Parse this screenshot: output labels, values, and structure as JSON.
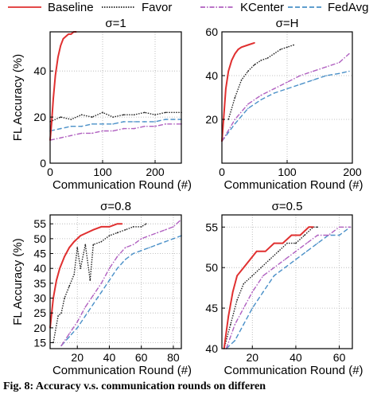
{
  "legend": [
    {
      "name": "Baseline",
      "color": "#e03030",
      "dash": "solid"
    },
    {
      "name": "Favor",
      "color": "#222222",
      "dash": "dotted"
    },
    {
      "name": "KCenter",
      "color": "#b060c0",
      "dash": "dashdot"
    },
    {
      "name": "FedAvg",
      "color": "#4a90c8",
      "dash": "dashed"
    }
  ],
  "caption": "Fig. 8: Accuracy v.s. communication rounds on differen",
  "chart_data": [
    {
      "type": "line",
      "title": "σ=1",
      "xlabel": "Communication Round (#)",
      "ylabel": "FL Accuracy (%)",
      "xlim": [
        0,
        250
      ],
      "ylim": [
        0,
        57
      ],
      "xticks": [
        "0",
        "100",
        "200"
      ],
      "yticks": [
        "0",
        "20",
        "40"
      ],
      "xtick_values": [
        0,
        100,
        200
      ],
      "ytick_values": [
        0,
        20,
        40
      ],
      "grid": true,
      "series": [
        {
          "name": "Baseline",
          "x": [
            0,
            3,
            6,
            10,
            15,
            20,
            25,
            30,
            35,
            40,
            45,
            50
          ],
          "y": [
            10,
            18,
            28,
            38,
            46,
            51,
            54,
            55,
            56,
            56,
            57,
            57
          ]
        },
        {
          "name": "Favor",
          "x": [
            0,
            20,
            40,
            60,
            80,
            100,
            120,
            140,
            160,
            180,
            200,
            220,
            250
          ],
          "y": [
            18,
            20,
            19,
            21,
            20,
            22,
            20,
            21,
            21,
            22,
            21,
            22,
            22
          ]
        },
        {
          "name": "KCenter",
          "x": [
            0,
            20,
            40,
            60,
            80,
            100,
            120,
            140,
            160,
            180,
            200,
            220,
            250
          ],
          "y": [
            10,
            11,
            12,
            13,
            13,
            14,
            14,
            15,
            15,
            16,
            16,
            17,
            17
          ]
        },
        {
          "name": "FedAvg",
          "x": [
            0,
            20,
            40,
            60,
            80,
            100,
            120,
            140,
            160,
            180,
            200,
            220,
            250
          ],
          "y": [
            14,
            15,
            16,
            16,
            17,
            17,
            17,
            18,
            18,
            18,
            18,
            19,
            19
          ]
        }
      ]
    },
    {
      "type": "line",
      "title": "σ=H",
      "xlabel": "Communication Round (#)",
      "ylabel": "",
      "xlim": [
        0,
        200
      ],
      "ylim": [
        0,
        60
      ],
      "xticks": [
        "0",
        "100",
        "200"
      ],
      "yticks": [
        "20",
        "40",
        "60"
      ],
      "xtick_values": [
        0,
        100,
        200
      ],
      "ytick_values": [
        20,
        40,
        60
      ],
      "grid": true,
      "series": [
        {
          "name": "Baseline",
          "x": [
            0,
            3,
            6,
            10,
            15,
            20,
            25,
            30,
            40,
            50
          ],
          "y": [
            10,
            22,
            34,
            42,
            47,
            50,
            52,
            53,
            54,
            55
          ]
        },
        {
          "name": "Favor",
          "x": [
            10,
            20,
            30,
            40,
            50,
            60,
            70,
            80,
            90,
            100,
            110
          ],
          "y": [
            20,
            30,
            38,
            42,
            45,
            47,
            48,
            50,
            52,
            53,
            54
          ]
        },
        {
          "name": "KCenter",
          "x": [
            0,
            20,
            40,
            60,
            80,
            100,
            120,
            140,
            160,
            180,
            195
          ],
          "y": [
            10,
            20,
            27,
            31,
            34,
            37,
            40,
            42,
            44,
            46,
            50
          ]
        },
        {
          "name": "FedAvg",
          "x": [
            0,
            20,
            40,
            60,
            80,
            100,
            120,
            140,
            160,
            180,
            195
          ],
          "y": [
            10,
            18,
            25,
            29,
            32,
            34,
            36,
            38,
            40,
            41,
            42
          ]
        }
      ]
    },
    {
      "type": "line",
      "title": "σ=0.8",
      "xlabel": "Communication Round (#)",
      "ylabel": "FL Accuracy (%)",
      "xlim": [
        3,
        85
      ],
      "ylim": [
        13,
        58
      ],
      "xticks": [
        "20",
        "40",
        "60",
        "80"
      ],
      "yticks": [
        "15",
        "20",
        "25",
        "30",
        "35",
        "40",
        "45",
        "50",
        "55"
      ],
      "xtick_values": [
        20,
        40,
        60,
        80
      ],
      "ytick_values": [
        15,
        20,
        25,
        30,
        35,
        40,
        45,
        50,
        55
      ],
      "grid": true,
      "series": [
        {
          "name": "Baseline",
          "x": [
            3,
            5,
            7,
            9,
            12,
            15,
            18,
            22,
            26,
            30,
            35,
            40,
            45,
            48
          ],
          "y": [
            20,
            30,
            36,
            40,
            44,
            47,
            49,
            51,
            52,
            53,
            54,
            54,
            55,
            55
          ]
        },
        {
          "name": "Favor",
          "x": [
            5,
            8,
            10,
            12,
            15,
            18,
            20,
            22,
            25,
            28,
            30,
            35,
            40,
            45,
            50,
            55,
            60,
            63
          ],
          "y": [
            15,
            24,
            25,
            30,
            34,
            38,
            47,
            40,
            48,
            36,
            48,
            49,
            51,
            52,
            53,
            54,
            54,
            55
          ]
        },
        {
          "name": "KCenter",
          "x": [
            10,
            15,
            20,
            25,
            30,
            35,
            40,
            45,
            50,
            55,
            60,
            65,
            70,
            75,
            80,
            84
          ],
          "y": [
            14,
            18,
            22,
            27,
            31,
            35,
            40,
            44,
            47,
            48,
            50,
            51,
            52,
            53,
            54,
            56
          ]
        },
        {
          "name": "FedAvg",
          "x": [
            10,
            15,
            20,
            25,
            30,
            35,
            40,
            45,
            50,
            55,
            60,
            65,
            70,
            75,
            80,
            85
          ],
          "y": [
            14,
            17,
            20,
            24,
            28,
            32,
            36,
            40,
            43,
            45,
            46,
            47,
            48,
            49,
            50,
            51
          ]
        }
      ]
    },
    {
      "type": "line",
      "title": "σ=0.5",
      "xlabel": "Communication Round (#)",
      "ylabel": "",
      "xlim": [
        6,
        66
      ],
      "ylim": [
        40,
        56.5
      ],
      "xticks": [
        "20",
        "40",
        "60"
      ],
      "yticks": [
        "40",
        "45",
        "50",
        "55"
      ],
      "xtick_values": [
        20,
        40,
        60
      ],
      "ytick_values": [
        40,
        45,
        50,
        55
      ],
      "grid": true,
      "series": [
        {
          "name": "Baseline",
          "x": [
            7,
            9,
            11,
            13,
            16,
            19,
            22,
            26,
            30,
            34,
            38,
            42,
            46,
            48
          ],
          "y": [
            40,
            44,
            47,
            49,
            50,
            51,
            52,
            52,
            53,
            53,
            54,
            54,
            55,
            55
          ]
        },
        {
          "name": "Favor",
          "x": [
            7,
            10,
            13,
            16,
            20,
            24,
            28,
            32,
            36,
            40,
            44,
            48,
            50
          ],
          "y": [
            40,
            43,
            46,
            48,
            49,
            50,
            51,
            52,
            53,
            53,
            54,
            55,
            55
          ]
        },
        {
          "name": "KCenter",
          "x": [
            8,
            12,
            16,
            20,
            25,
            30,
            35,
            40,
            45,
            50,
            55,
            60,
            65
          ],
          "y": [
            40,
            43,
            45,
            47,
            49,
            50,
            51,
            52,
            53,
            54,
            54,
            55,
            55
          ]
        },
        {
          "name": "FedAvg",
          "x": [
            8,
            12,
            16,
            20,
            25,
            30,
            35,
            40,
            45,
            50,
            55,
            60,
            65
          ],
          "y": [
            40,
            41,
            43,
            45,
            47,
            49,
            50,
            51,
            52,
            53,
            54,
            54,
            55
          ]
        }
      ]
    }
  ]
}
